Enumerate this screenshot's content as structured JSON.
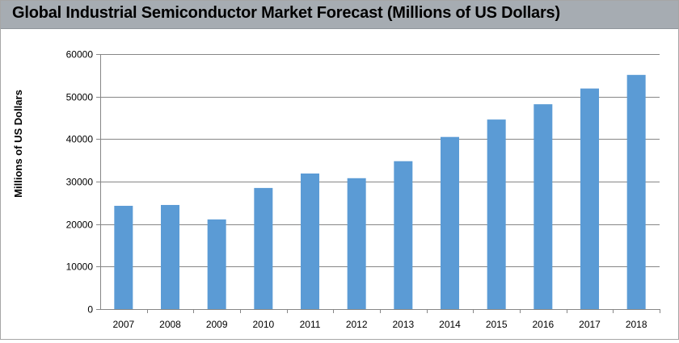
{
  "header": {
    "title": "Global Industrial Semiconductor Market Forecast (Millions of US Dollars)"
  },
  "colors": {
    "bar": "#5b9bd5",
    "title_bar": "#a6acb2",
    "axis": "#868686",
    "gridline": "#868686"
  },
  "chart_data": {
    "type": "bar",
    "title": "Global Industrial Semiconductor Market Forecast (Millions of US Dollars)",
    "xlabel": "",
    "ylabel": "Millions of US Dollars",
    "categories": [
      "2007",
      "2008",
      "2009",
      "2010",
      "2011",
      "2012",
      "2013",
      "2014",
      "2015",
      "2016",
      "2017",
      "2018"
    ],
    "values": [
      24300,
      24500,
      21100,
      28500,
      31900,
      30800,
      34800,
      40500,
      44600,
      48200,
      51900,
      55100
    ],
    "ylim": [
      0,
      60000
    ],
    "yticks": [
      "0",
      "10000",
      "20000",
      "30000",
      "40000",
      "50000",
      "60000"
    ],
    "grid": true,
    "legend": "none"
  }
}
